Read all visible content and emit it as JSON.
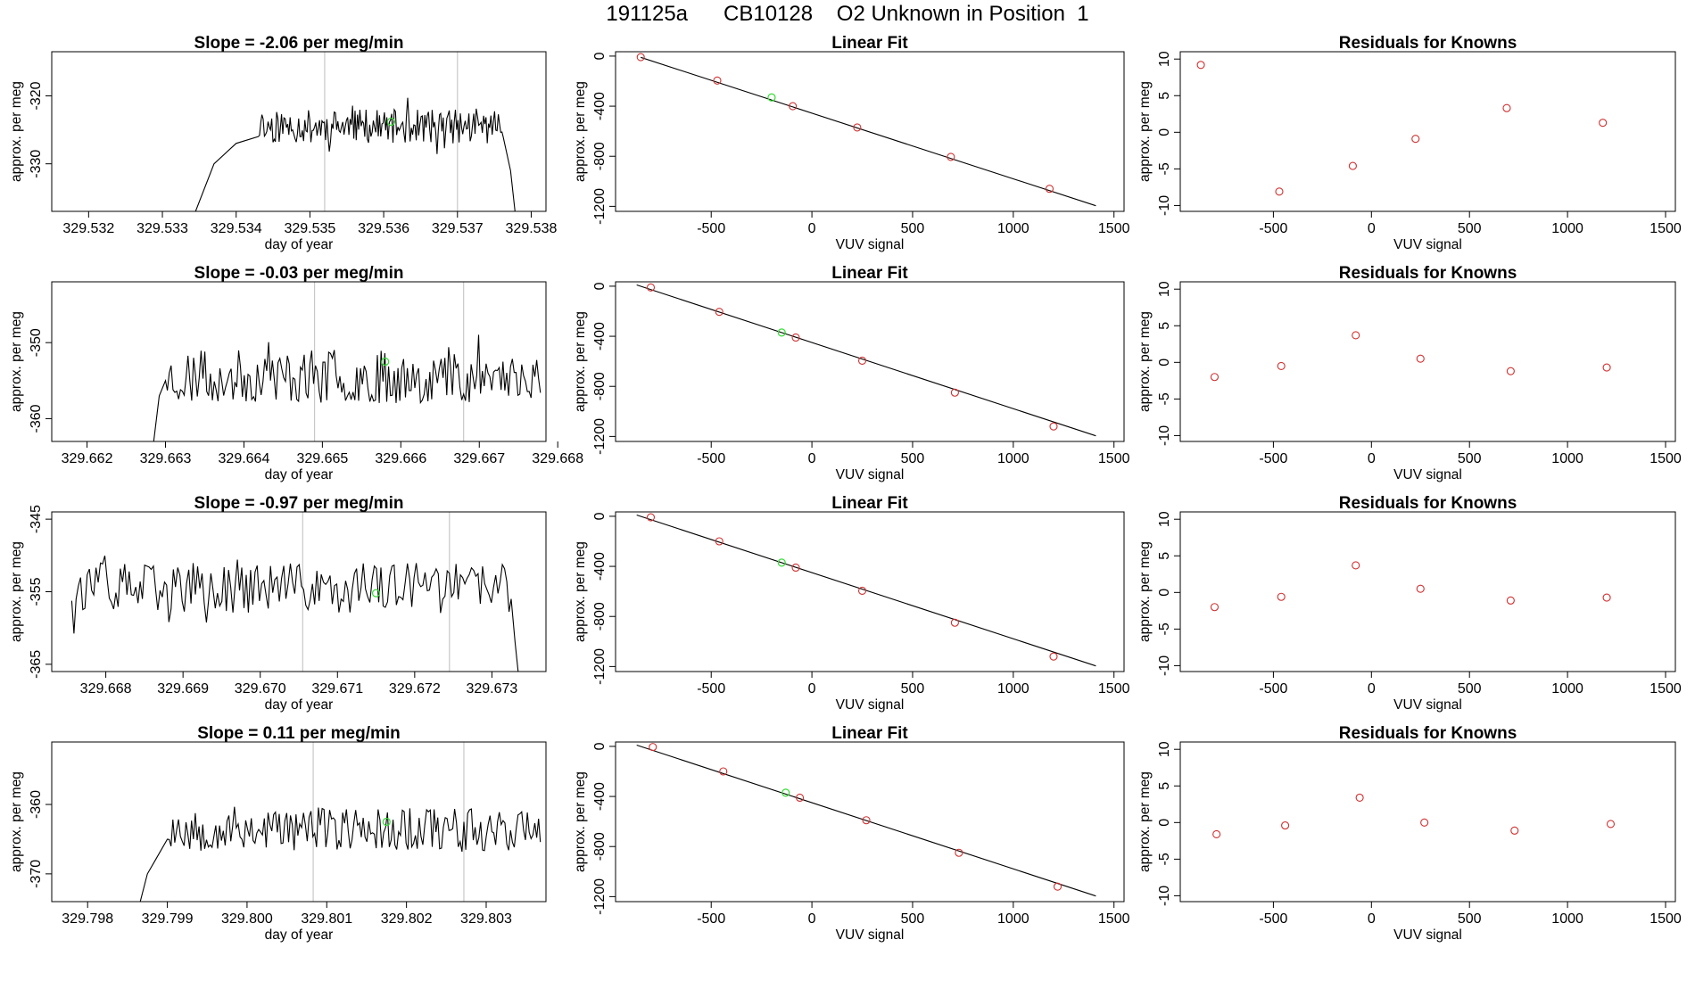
{
  "title": "191125a      CB10128    O2 Unknown in Position  1",
  "colors": {
    "trace": "#000000",
    "fitline": "#000000",
    "known": "#d03030",
    "unknown": "#33dd33",
    "vline": "#c8c8c8",
    "frame": "#000000"
  },
  "chart_data": [
    {
      "row": 0,
      "timeseries": {
        "type": "line",
        "title": "Slope =  -2.06  per meg/min",
        "xlabel": "day of year",
        "ylabel": "approx. per meg",
        "xlim": [
          329.5315,
          329.5382
        ],
        "ylim": [
          -337,
          -313.5
        ],
        "xticks": [
          329.532,
          329.533,
          329.534,
          329.535,
          329.536,
          329.537,
          329.538
        ],
        "xtick_labels": [
          "329.532",
          "329.533",
          "329.534",
          "329.535",
          "329.536",
          "329.537",
          "329.538"
        ],
        "yticks": [
          -320,
          -330
        ],
        "ytick_labels": [
          "-320",
          "-330"
        ],
        "vlines": [
          329.5352,
          329.537
        ],
        "unknown_point": [
          329.5361,
          -323.8
        ],
        "trace_start": 329.53345,
        "trace_end": 329.53778,
        "trace_base": -324.5,
        "trace_noise": 2.5,
        "trace_seed": 11,
        "trace_rise": [
          [
            329.53345,
            -337
          ],
          [
            329.5337,
            -330
          ],
          [
            329.534,
            -327
          ],
          [
            329.5343,
            -326
          ]
        ],
        "trace_tail": [
          [
            329.53762,
            -326
          ],
          [
            329.53772,
            -331
          ],
          [
            329.53778,
            -337
          ]
        ]
      },
      "linearfit": {
        "type": "scatter",
        "title": "Linear Fit",
        "xlabel": "VUV signal",
        "ylabel": "approx. per meg",
        "xlim": [
          -975,
          1550
        ],
        "ylim": [
          -1240,
          35
        ],
        "xticks": [
          -500,
          0,
          500,
          1000,
          1500
        ],
        "xtick_labels": [
          "-500",
          "0",
          "500",
          "1000",
          "1500"
        ],
        "yticks": [
          0,
          -400,
          -800,
          -1200
        ],
        "ytick_labels": [
          "0",
          "-400",
          "-800",
          "-1200"
        ],
        "line": [
          [
            -850,
            -10
          ],
          [
            1410,
            -1195
          ]
        ],
        "known_points": [
          [
            -850,
            -8
          ],
          [
            -470,
            -195
          ],
          [
            -95,
            -400
          ],
          [
            225,
            -570
          ],
          [
            690,
            -805
          ],
          [
            1180,
            -1060
          ]
        ],
        "unknown_point": [
          -200,
          -330
        ]
      },
      "residuals": {
        "type": "scatter",
        "title": "Residuals for Knowns",
        "xlabel": "VUV signal",
        "ylabel": "approx. per meg",
        "xlim": [
          -975,
          1550
        ],
        "ylim": [
          -10.8,
          11
        ],
        "xticks": [
          -500,
          0,
          500,
          1000,
          1500
        ],
        "xtick_labels": [
          "-500",
          "0",
          "500",
          "1000",
          "1500"
        ],
        "yticks": [
          10,
          5,
          0,
          -5,
          -10
        ],
        "ytick_labels": [
          "10",
          "5",
          "0",
          "-5",
          "-10"
        ],
        "points": [
          [
            -870,
            9.2
          ],
          [
            -470,
            -8.1
          ],
          [
            -95,
            -4.6
          ],
          [
            225,
            -0.9
          ],
          [
            690,
            3.3
          ],
          [
            1180,
            1.3
          ]
        ]
      }
    },
    {
      "row": 1,
      "timeseries": {
        "type": "line",
        "title": "Slope =  -0.03  per meg/min",
        "xlabel": "day of year",
        "ylabel": "approx. per meg",
        "xlim": [
          329.66155,
          329.66785
        ],
        "ylim": [
          -363,
          -342
        ],
        "xticks": [
          329.662,
          329.663,
          329.664,
          329.665,
          329.666,
          329.667,
          329.668
        ],
        "xtick_labels": [
          "329.662",
          "329.663",
          "329.664",
          "329.665",
          "329.666",
          "329.667",
          "329.668"
        ],
        "yticks": [
          -350,
          -360
        ],
        "ytick_labels": [
          "-350",
          "-360"
        ],
        "vlines": [
          329.6649,
          329.6668
        ],
        "unknown_point": [
          329.6658,
          -352.5
        ],
        "trace_start": 329.66285,
        "trace_end": 329.66778,
        "trace_base": -354.5,
        "trace_noise": 3.5,
        "trace_seed": 23,
        "trace_rise": [
          [
            329.66285,
            -363
          ],
          [
            329.66292,
            -357
          ],
          [
            329.663,
            -355
          ]
        ],
        "trace_tail": []
      },
      "linearfit": {
        "type": "scatter",
        "title": "Linear Fit",
        "xlabel": "VUV signal",
        "ylabel": "approx. per meg",
        "xlim": [
          -975,
          1550
        ],
        "ylim": [
          -1240,
          35
        ],
        "xticks": [
          -500,
          0,
          500,
          1000,
          1500
        ],
        "xtick_labels": [
          "-500",
          "0",
          "500",
          "1000",
          "1500"
        ],
        "yticks": [
          0,
          -400,
          -800,
          -1200
        ],
        "ytick_labels": [
          "0",
          "-400",
          "-800",
          "-1200"
        ],
        "line": [
          [
            -870,
            10
          ],
          [
            1410,
            -1195
          ]
        ],
        "known_points": [
          [
            -800,
            -10
          ],
          [
            -460,
            -205
          ],
          [
            -80,
            -410
          ],
          [
            250,
            -595
          ],
          [
            710,
            -850
          ],
          [
            1200,
            -1120
          ]
        ],
        "unknown_point": [
          -150,
          -370
        ]
      },
      "residuals": {
        "type": "scatter",
        "title": "Residuals for Knowns",
        "xlabel": "VUV signal",
        "ylabel": "approx. per meg",
        "xlim": [
          -975,
          1550
        ],
        "ylim": [
          -10.8,
          11
        ],
        "xticks": [
          -500,
          0,
          500,
          1000,
          1500
        ],
        "xtick_labels": [
          "-500",
          "0",
          "500",
          "1000",
          "1500"
        ],
        "yticks": [
          10,
          5,
          0,
          -5,
          -10
        ],
        "ytick_labels": [
          "10",
          "5",
          "0",
          "-5",
          "-10"
        ],
        "points": [
          [
            -800,
            -2.0
          ],
          [
            -460,
            -0.5
          ],
          [
            -80,
            3.7
          ],
          [
            250,
            0.5
          ],
          [
            710,
            -1.2
          ],
          [
            1200,
            -0.7
          ]
        ]
      }
    },
    {
      "row": 2,
      "timeseries": {
        "type": "line",
        "title": "Slope =  -0.97  per meg/min",
        "xlabel": "day of year",
        "ylabel": "approx. per meg",
        "xlim": [
          329.6673,
          329.6737
        ],
        "ylim": [
          -366,
          -344
        ],
        "xticks": [
          329.668,
          329.669,
          329.67,
          329.671,
          329.672,
          329.673
        ],
        "xtick_labels": [
          "329.668",
          "329.669",
          "329.670",
          "329.671",
          "329.672",
          "329.673"
        ],
        "yticks": [
          -345,
          -355,
          -365
        ],
        "ytick_labels": [
          "-345",
          "-355",
          "-365"
        ],
        "vlines": [
          329.67055,
          329.67245
        ],
        "unknown_point": [
          329.6715,
          -355.2
        ],
        "trace_start": 329.66753,
        "trace_end": 329.67334,
        "trace_base": -354.5,
        "trace_noise": 3.5,
        "trace_seed": 37,
        "trace_rise": [],
        "trace_tail": [
          [
            329.67325,
            -356
          ],
          [
            329.6733,
            -362
          ],
          [
            329.67334,
            -366
          ]
        ]
      },
      "linearfit": {
        "type": "scatter",
        "title": "Linear Fit",
        "xlabel": "VUV signal",
        "ylabel": "approx. per meg",
        "xlim": [
          -975,
          1550
        ],
        "ylim": [
          -1240,
          35
        ],
        "xticks": [
          -500,
          0,
          500,
          1000,
          1500
        ],
        "xtick_labels": [
          "-500",
          "0",
          "500",
          "1000",
          "1500"
        ],
        "yticks": [
          0,
          -400,
          -800,
          -1200
        ],
        "ytick_labels": [
          "0",
          "-400",
          "-800",
          "-1200"
        ],
        "line": [
          [
            -870,
            10
          ],
          [
            1410,
            -1195
          ]
        ],
        "known_points": [
          [
            -800,
            -8
          ],
          [
            -460,
            -200
          ],
          [
            -80,
            -410
          ],
          [
            250,
            -595
          ],
          [
            710,
            -850
          ],
          [
            1200,
            -1120
          ]
        ],
        "unknown_point": [
          -150,
          -370
        ]
      },
      "residuals": {
        "type": "scatter",
        "title": "Residuals for Knowns",
        "xlabel": "VUV signal",
        "ylabel": "approx. per meg",
        "xlim": [
          -975,
          1550
        ],
        "ylim": [
          -10.8,
          11
        ],
        "xticks": [
          -500,
          0,
          500,
          1000,
          1500
        ],
        "xtick_labels": [
          "-500",
          "0",
          "500",
          "1000",
          "1500"
        ],
        "yticks": [
          10,
          5,
          0,
          -5,
          -10
        ],
        "ytick_labels": [
          "10",
          "5",
          "0",
          "-5",
          "-10"
        ],
        "points": [
          [
            -800,
            -2.0
          ],
          [
            -460,
            -0.6
          ],
          [
            -80,
            3.7
          ],
          [
            250,
            0.5
          ],
          [
            710,
            -1.1
          ],
          [
            1200,
            -0.7
          ]
        ]
      }
    },
    {
      "row": 3,
      "timeseries": {
        "type": "line",
        "title": "Slope =  0.11  per meg/min",
        "xlabel": "day of year",
        "ylabel": "approx. per meg",
        "xlim": [
          329.79755,
          329.80375
        ],
        "ylim": [
          -374,
          -351
        ],
        "xticks": [
          329.798,
          329.799,
          329.8,
          329.801,
          329.802,
          329.803
        ],
        "xtick_labels": [
          "329.798",
          "329.799",
          "329.800",
          "329.801",
          "329.802",
          "329.803"
        ],
        "yticks": [
          -360,
          -370
        ],
        "ytick_labels": [
          "-360",
          "-370"
        ],
        "vlines": [
          329.80083,
          329.80272
        ],
        "unknown_point": [
          329.80175,
          -362.5
        ],
        "trace_start": 329.79866,
        "trace_end": 329.80368,
        "trace_base": -363.5,
        "trace_noise": 3.2,
        "trace_seed": 53,
        "trace_rise": [
          [
            329.79866,
            -374
          ],
          [
            329.79875,
            -370
          ],
          [
            329.79885,
            -368
          ],
          [
            329.799,
            -365
          ]
        ],
        "trace_tail": []
      },
      "linearfit": {
        "type": "scatter",
        "title": "Linear Fit",
        "xlabel": "VUV signal",
        "ylabel": "approx. per meg",
        "xlim": [
          -975,
          1550
        ],
        "ylim": [
          -1240,
          35
        ],
        "xticks": [
          -500,
          0,
          500,
          1000,
          1500
        ],
        "xtick_labels": [
          "-500",
          "0",
          "500",
          "1000",
          "1500"
        ],
        "yticks": [
          0,
          -400,
          -800,
          -1200
        ],
        "ytick_labels": [
          "0",
          "-400",
          "-800",
          "-1200"
        ],
        "line": [
          [
            -870,
            10
          ],
          [
            1410,
            -1195
          ]
        ],
        "known_points": [
          [
            -790,
            -5
          ],
          [
            -440,
            -200
          ],
          [
            -60,
            -410
          ],
          [
            270,
            -590
          ],
          [
            730,
            -850
          ],
          [
            1220,
            -1120
          ]
        ],
        "unknown_point": [
          -130,
          -370
        ]
      },
      "residuals": {
        "type": "scatter",
        "title": "Residuals for Knowns",
        "xlabel": "VUV signal",
        "ylabel": "approx. per meg",
        "xlim": [
          -975,
          1550
        ],
        "ylim": [
          -10.8,
          11
        ],
        "xticks": [
          -500,
          0,
          500,
          1000,
          1500
        ],
        "xtick_labels": [
          "-500",
          "0",
          "500",
          "1000",
          "1500"
        ],
        "yticks": [
          10,
          5,
          0,
          -5,
          -10
        ],
        "ytick_labels": [
          "10",
          "5",
          "0",
          "-5",
          "-10"
        ],
        "points": [
          [
            -790,
            -1.6
          ],
          [
            -440,
            -0.4
          ],
          [
            -60,
            3.4
          ],
          [
            270,
            0.0
          ],
          [
            730,
            -1.1
          ],
          [
            1220,
            -0.2
          ]
        ]
      }
    }
  ]
}
